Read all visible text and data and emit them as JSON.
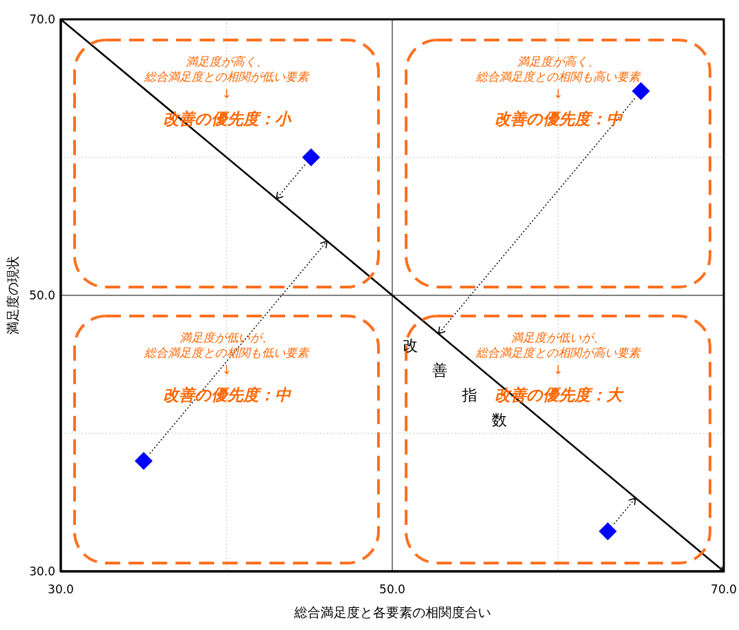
{
  "chart_data": {
    "type": "scatter",
    "xlabel": "総合満足度と各要素の相関度合い",
    "ylabel": "満足度の現状",
    "xlim": [
      30,
      70
    ],
    "ylim": [
      30,
      70
    ],
    "xticks": [
      {
        "value": 30,
        "label": "30.0"
      },
      {
        "value": 40,
        "label": null
      },
      {
        "value": 50,
        "label": "50.0"
      },
      {
        "value": 60,
        "label": null
      },
      {
        "value": 70,
        "label": "70.0"
      }
    ],
    "yticks": [
      {
        "value": 30,
        "label": "30.0"
      },
      {
        "value": 40,
        "label": null
      },
      {
        "value": 50,
        "label": "50.0"
      },
      {
        "value": 60,
        "label": null
      },
      {
        "value": 70,
        "label": "70.0"
      }
    ],
    "grid": true,
    "marker": "diamond",
    "series": [
      {
        "color": "#0000ff",
        "x": [
          45.1,
          65.0,
          35.0,
          63.0
        ],
        "values": [
          60.0,
          64.8,
          38.0,
          32.9
        ]
      },
      {
        "type": "line",
        "name": "改善指数",
        "color": "#000000",
        "line_style": "solid",
        "marker": "none",
        "x": [
          30,
          70
        ],
        "values": [
          70,
          30
        ]
      }
    ],
    "annotations": [
      "満足度が高く、総合満足度との相関が低い要素",
      "↓",
      "改善の優先度：小",
      "満足度が高く、総合満足度との相関も高い要素",
      "↓",
      "改善の優先度：中",
      "満足度が低いが、総合満足度との相関も低い要素",
      "↓",
      "改善の優先度：中",
      "満足度が低いが、総合満足度との相関が高い要素",
      "↓",
      "改善の優先度：大"
    ]
  }
}
